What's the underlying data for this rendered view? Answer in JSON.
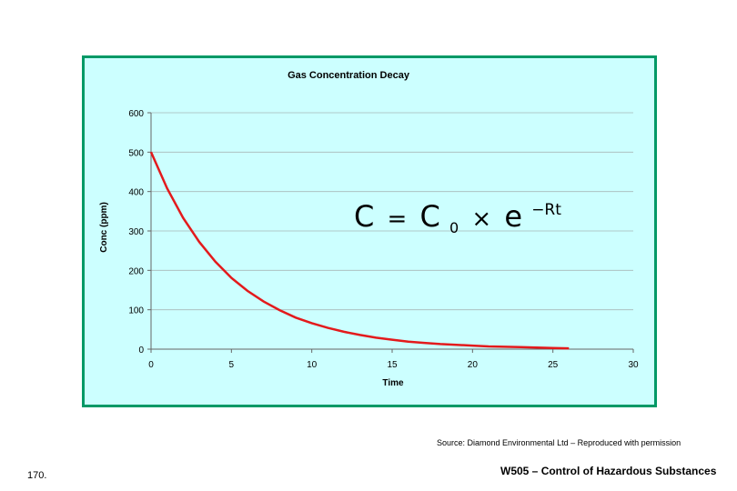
{
  "chart_data": {
    "type": "line",
    "title": "Gas Concentration Decay",
    "xlabel": "Time",
    "ylabel": "Conc (ppm)",
    "xlim": [
      0,
      30
    ],
    "ylim": [
      0,
      600
    ],
    "xticks": [
      0,
      5,
      10,
      15,
      20,
      25,
      30
    ],
    "yticks": [
      0,
      100,
      200,
      300,
      400,
      500,
      600
    ],
    "grid": true,
    "series_color": "#e31a1c",
    "series": [
      {
        "x": [
          0,
          1,
          2,
          3,
          4,
          5,
          6,
          7,
          8,
          9,
          10,
          11,
          12,
          13,
          14,
          15,
          16,
          17,
          18,
          19,
          20,
          21,
          22,
          23,
          24,
          25,
          26
        ],
        "values": [
          500,
          408,
          333,
          272,
          222,
          181,
          148,
          121,
          99,
          80,
          66,
          54,
          44,
          36,
          29,
          24,
          19,
          16,
          13,
          11,
          9,
          7,
          6,
          5,
          4,
          3,
          2
        ]
      }
    ],
    "annotation": {
      "lhs": "C",
      "equals": "=",
      "c": "C",
      "sub": "0",
      "times": "×",
      "e": "e",
      "sup": "−Rt"
    }
  },
  "footer": {
    "source": "Source: Diamond Environmental Ltd – Reproduced with permission",
    "slide_number": "170.",
    "course_title": "W505 – Control of Hazardous Substances"
  }
}
